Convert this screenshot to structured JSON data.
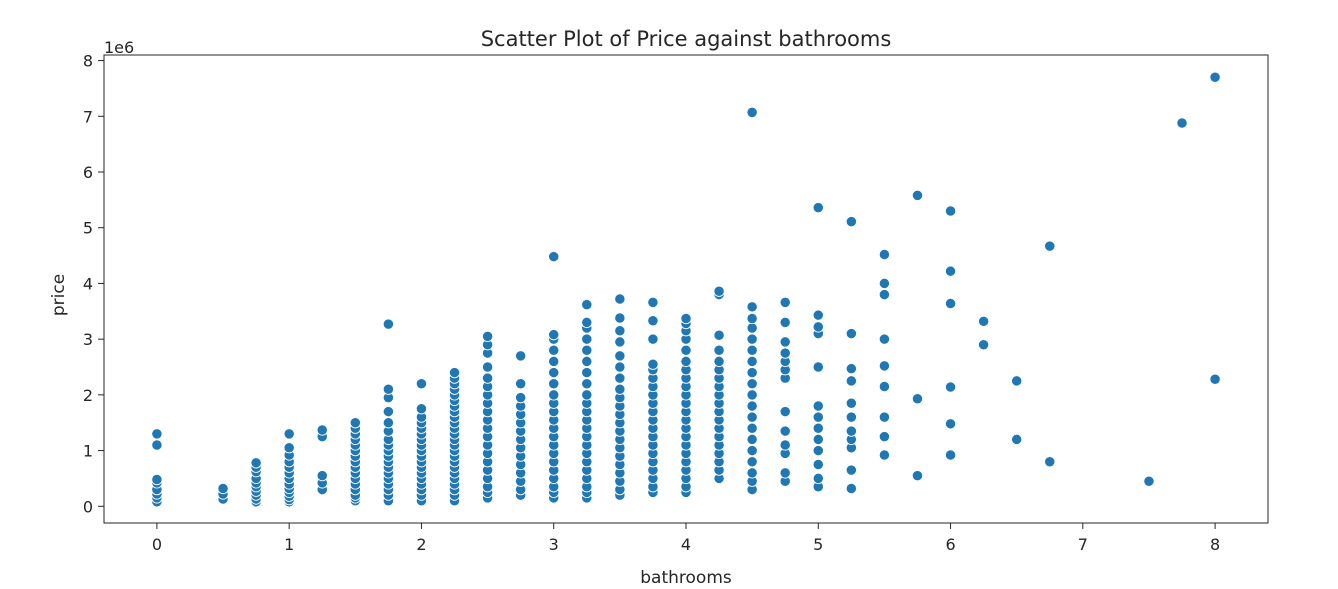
{
  "chart_data": {
    "type": "scatter",
    "title": "Scatter Plot of Price against  bathrooms",
    "xlabel": "bathrooms",
    "ylabel": "price",
    "y_offset_label": "1e6",
    "xlim": [
      -0.4,
      8.4
    ],
    "ylim": [
      -0.3,
      8.1
    ],
    "x_ticks": [
      0,
      1,
      2,
      3,
      4,
      5,
      6,
      7,
      8
    ],
    "y_ticks": [
      0,
      1,
      2,
      3,
      4,
      5,
      6,
      7,
      8
    ],
    "y_unit": "millions (1e6)",
    "grid": false,
    "legend": "none",
    "marker_color": "#1f77b4",
    "columns": [
      {
        "x": 0,
        "y": [
          0.08,
          0.15,
          0.22,
          0.3,
          0.42,
          0.48,
          1.1,
          1.3
        ]
      },
      {
        "x": 0.5,
        "y": [
          0.13,
          0.22,
          0.32
        ]
      },
      {
        "x": 0.75,
        "y": [
          0.08,
          0.13,
          0.2,
          0.27,
          0.35,
          0.42,
          0.5,
          0.62,
          0.7,
          0.78
        ]
      },
      {
        "x": 1,
        "y": [
          0.08,
          0.12,
          0.18,
          0.25,
          0.32,
          0.4,
          0.5,
          0.6,
          0.7,
          0.8,
          0.92,
          1.05,
          1.3
        ]
      },
      {
        "x": 1.25,
        "y": [
          0.3,
          0.42,
          0.55,
          1.25,
          1.37
        ]
      },
      {
        "x": 1.5,
        "y": [
          0.1,
          0.15,
          0.2,
          0.3,
          0.4,
          0.5,
          0.6,
          0.7,
          0.8,
          0.9,
          1.0,
          1.1,
          1.2,
          1.3,
          1.4,
          1.5
        ]
      },
      {
        "x": 1.75,
        "y": [
          0.1,
          0.2,
          0.3,
          0.4,
          0.5,
          0.6,
          0.7,
          0.8,
          0.9,
          1.0,
          1.1,
          1.2,
          1.35,
          1.5,
          1.7,
          1.95,
          2.1,
          3.27
        ]
      },
      {
        "x": 2,
        "y": [
          0.1,
          0.2,
          0.3,
          0.4,
          0.5,
          0.6,
          0.7,
          0.8,
          0.9,
          1.0,
          1.1,
          1.2,
          1.3,
          1.4,
          1.5,
          1.6,
          1.75,
          2.2
        ]
      },
      {
        "x": 2.25,
        "y": [
          0.1,
          0.2,
          0.3,
          0.4,
          0.5,
          0.6,
          0.7,
          0.8,
          0.9,
          1.0,
          1.1,
          1.2,
          1.3,
          1.4,
          1.5,
          1.6,
          1.7,
          1.8,
          1.9,
          2.0,
          2.1,
          2.2,
          2.3,
          2.4
        ]
      },
      {
        "x": 2.5,
        "y": [
          0.15,
          0.25,
          0.35,
          0.5,
          0.65,
          0.8,
          0.95,
          1.1,
          1.25,
          1.4,
          1.55,
          1.7,
          1.85,
          2.0,
          2.15,
          2.3,
          2.5,
          2.75,
          2.9,
          3.05
        ]
      },
      {
        "x": 2.75,
        "y": [
          0.2,
          0.3,
          0.45,
          0.6,
          0.75,
          0.9,
          1.05,
          1.2,
          1.35,
          1.5,
          1.65,
          1.8,
          1.95,
          2.2,
          2.7
        ]
      },
      {
        "x": 3,
        "y": [
          0.15,
          0.25,
          0.35,
          0.5,
          0.65,
          0.8,
          0.95,
          1.1,
          1.25,
          1.4,
          1.55,
          1.7,
          1.85,
          2.0,
          2.2,
          2.4,
          2.6,
          2.8,
          3.0,
          3.08,
          4.48
        ]
      },
      {
        "x": 3.25,
        "y": [
          0.15,
          0.25,
          0.35,
          0.5,
          0.65,
          0.8,
          0.95,
          1.1,
          1.25,
          1.4,
          1.55,
          1.7,
          1.85,
          2.0,
          2.2,
          2.4,
          2.6,
          2.8,
          3.0,
          3.2,
          3.3,
          3.62
        ]
      },
      {
        "x": 3.5,
        "y": [
          0.2,
          0.3,
          0.45,
          0.6,
          0.75,
          0.9,
          1.05,
          1.2,
          1.35,
          1.5,
          1.65,
          1.8,
          1.95,
          2.1,
          2.3,
          2.5,
          2.7,
          2.95,
          3.15,
          3.38,
          3.72
        ]
      },
      {
        "x": 3.75,
        "y": [
          0.25,
          0.35,
          0.5,
          0.65,
          0.8,
          0.95,
          1.1,
          1.25,
          1.4,
          1.55,
          1.7,
          1.85,
          2.0,
          2.15,
          2.3,
          2.45,
          2.55,
          3.0,
          3.33,
          3.66
        ]
      },
      {
        "x": 4,
        "y": [
          0.25,
          0.35,
          0.5,
          0.65,
          0.8,
          0.95,
          1.1,
          1.25,
          1.4,
          1.55,
          1.7,
          1.85,
          2.0,
          2.15,
          2.3,
          2.45,
          2.6,
          2.8,
          3.0,
          3.15,
          3.28,
          3.37
        ]
      },
      {
        "x": 4.25,
        "y": [
          0.5,
          0.65,
          0.8,
          0.95,
          1.1,
          1.25,
          1.4,
          1.55,
          1.7,
          1.85,
          2.0,
          2.15,
          2.3,
          2.45,
          2.6,
          2.8,
          3.07,
          3.8,
          3.86
        ]
      },
      {
        "x": 4.5,
        "y": [
          0.3,
          0.45,
          0.6,
          0.8,
          1.0,
          1.2,
          1.4,
          1.6,
          1.8,
          2.0,
          2.2,
          2.4,
          2.6,
          2.8,
          3.0,
          3.2,
          3.37,
          3.58,
          7.07
        ]
      },
      {
        "x": 4.75,
        "y": [
          0.45,
          0.6,
          0.95,
          1.1,
          1.35,
          1.7,
          2.3,
          2.45,
          2.6,
          2.75,
          2.95,
          3.3,
          3.66
        ]
      },
      {
        "x": 5,
        "y": [
          0.35,
          0.5,
          0.75,
          1.0,
          1.2,
          1.4,
          1.6,
          1.8,
          2.5,
          3.1,
          3.22,
          3.43,
          5.36
        ]
      },
      {
        "x": 5.25,
        "y": [
          0.32,
          0.65,
          1.05,
          1.2,
          1.35,
          1.6,
          1.85,
          2.25,
          2.47,
          3.1,
          5.11
        ]
      },
      {
        "x": 5.5,
        "y": [
          0.92,
          1.25,
          1.6,
          2.15,
          2.52,
          3.0,
          3.8,
          4.0,
          4.52
        ]
      },
      {
        "x": 5.75,
        "y": [
          0.55,
          1.93,
          5.58
        ]
      },
      {
        "x": 6,
        "y": [
          0.92,
          1.48,
          2.14,
          3.64,
          4.22,
          5.3
        ]
      },
      {
        "x": 6.25,
        "y": [
          2.9,
          3.32
        ]
      },
      {
        "x": 6.5,
        "y": [
          1.2,
          2.25
        ]
      },
      {
        "x": 6.75,
        "y": [
          0.8,
          4.67
        ]
      },
      {
        "x": 7.5,
        "y": [
          0.45
        ]
      },
      {
        "x": 7.75,
        "y": [
          6.88
        ]
      },
      {
        "x": 8,
        "y": [
          2.28,
          7.7
        ]
      }
    ]
  }
}
